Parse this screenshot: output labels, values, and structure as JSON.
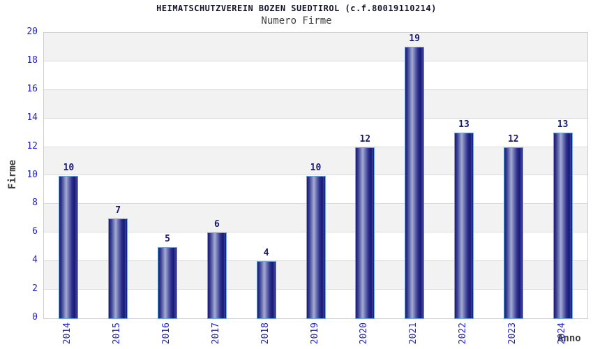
{
  "chart_data": {
    "type": "bar",
    "title": "HEIMATSCHUTZVEREIN BOZEN SUEDTIROL (c.f.80019110214)",
    "subtitle": "Numero Firme",
    "xlabel": "Anno",
    "ylabel": "Firme",
    "categories": [
      "2014",
      "2015",
      "2016",
      "2017",
      "2018",
      "2019",
      "2020",
      "2021",
      "2022",
      "2023",
      "2024"
    ],
    "values": [
      10,
      7,
      5,
      6,
      4,
      10,
      12,
      19,
      13,
      12,
      13
    ],
    "ylim": [
      0,
      20
    ],
    "ytick_step": 2,
    "grid": true,
    "legend_position": "none",
    "band_colors": [
      "#f2f2f2",
      "#ffffff"
    ]
  },
  "colors": {
    "title": "#14142b",
    "subtitle_and_axis_names": "#404040",
    "tick_label_blue": "#2222cc",
    "value_label_navy": "#191970",
    "bar_edge_light_blue": "#6fa8dc",
    "bar_body_navy": "#23268e",
    "bar_body_highlight": "#a6abd4",
    "gridline": "#dcdcdc",
    "plot_border": "#d0d0d0"
  }
}
